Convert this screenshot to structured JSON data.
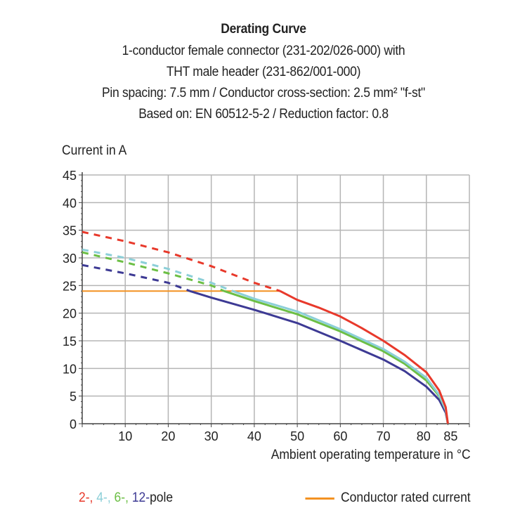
{
  "chart_data": {
    "type": "line",
    "title": "Derating Curve",
    "subtitle_lines": [
      "1-conductor female connector (231-202/026-000) with",
      "THT male header (231-862/001-000)",
      "Pin spacing: 7.5 mm / Conductor cross-section: 2.5 mm² \"f-st\"",
      "Based on: EN 60512-5-2 / Reduction factor: 0.8"
    ],
    "ylabel": "Current in A",
    "xlabel": "Ambient operating temperature in °C",
    "xlim": [
      0,
      90
    ],
    "ylim": [
      0,
      45
    ],
    "xticks": [
      10,
      20,
      30,
      40,
      50,
      60,
      70,
      80,
      85
    ],
    "yticks": [
      0,
      5,
      10,
      15,
      20,
      25,
      30,
      35,
      40,
      45
    ],
    "grid": true,
    "series": [
      {
        "name": "2-",
        "color": "#e8392b",
        "dashed": [
          [
            0,
            34.7
          ],
          [
            10,
            33
          ],
          [
            20,
            31
          ],
          [
            30,
            28.5
          ],
          [
            40,
            25.5
          ],
          [
            46,
            24
          ]
        ],
        "solid": [
          [
            46,
            24
          ],
          [
            50,
            22.4
          ],
          [
            55,
            21
          ],
          [
            60,
            19.4
          ],
          [
            65,
            17.3
          ],
          [
            70,
            15
          ],
          [
            75,
            12.4
          ],
          [
            80,
            9.3
          ],
          [
            83,
            6
          ],
          [
            84.5,
            3
          ],
          [
            85,
            0
          ]
        ]
      },
      {
        "name": "4-",
        "color": "#8ccfd8",
        "dashed": [
          [
            0,
            31.5
          ],
          [
            10,
            30
          ],
          [
            20,
            28
          ],
          [
            30,
            25.5
          ],
          [
            35,
            24
          ]
        ],
        "solid": [
          [
            35,
            24
          ],
          [
            40,
            22.6
          ],
          [
            50,
            20.3
          ],
          [
            60,
            17.1
          ],
          [
            70,
            13.5
          ],
          [
            75,
            11.2
          ],
          [
            80,
            8.3
          ],
          [
            83,
            5.2
          ],
          [
            84.5,
            2.5
          ],
          [
            85,
            0
          ]
        ]
      },
      {
        "name": "6-",
        "color": "#6cbf45",
        "dashed": [
          [
            0,
            31
          ],
          [
            10,
            29.2
          ],
          [
            20,
            27.2
          ],
          [
            30,
            25
          ],
          [
            33,
            24
          ]
        ],
        "solid": [
          [
            33,
            24
          ],
          [
            40,
            22.2
          ],
          [
            50,
            19.8
          ],
          [
            60,
            16.7
          ],
          [
            70,
            13.1
          ],
          [
            75,
            10.8
          ],
          [
            80,
            7.8
          ],
          [
            83,
            5
          ],
          [
            84.5,
            2.5
          ],
          [
            85,
            0
          ]
        ]
      },
      {
        "name": "12-",
        "color": "#3d3a94",
        "dashed": [
          [
            0,
            28.7
          ],
          [
            10,
            27.2
          ],
          [
            20,
            25.5
          ],
          [
            25,
            24
          ]
        ],
        "solid": [
          [
            25,
            24
          ],
          [
            30,
            22.8
          ],
          [
            40,
            20.6
          ],
          [
            50,
            18.2
          ],
          [
            60,
            15
          ],
          [
            70,
            11.6
          ],
          [
            75,
            9.5
          ],
          [
            80,
            6.7
          ],
          [
            83,
            4.3
          ],
          [
            84.5,
            2
          ],
          [
            85,
            0
          ]
        ]
      }
    ],
    "rated_current": {
      "label": "Conductor rated current",
      "color": "#f39222",
      "value": 24,
      "x_range": [
        0,
        46
      ]
    },
    "legend": {
      "left_suffix": "pole",
      "placement": "bottom"
    }
  }
}
